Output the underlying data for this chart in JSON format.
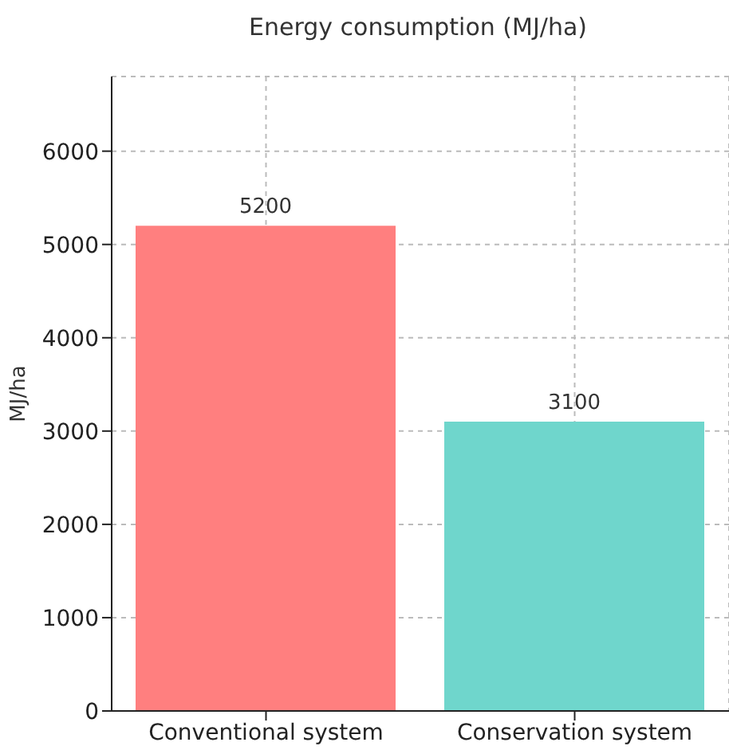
{
  "chart_data": {
    "type": "bar",
    "title": "Energy consumption (MJ/ha)",
    "ylabel": "MJ/ha",
    "categories": [
      "Conventional system",
      "Conservation system"
    ],
    "values": [
      5200,
      3100
    ],
    "colors": [
      "#ff7f7f",
      "#6fd6cc"
    ],
    "ylim": [
      0,
      6800
    ],
    "yticks": [
      0,
      1000,
      2000,
      3000,
      4000,
      5000,
      6000
    ],
    "grid": true,
    "data_labels": true
  }
}
